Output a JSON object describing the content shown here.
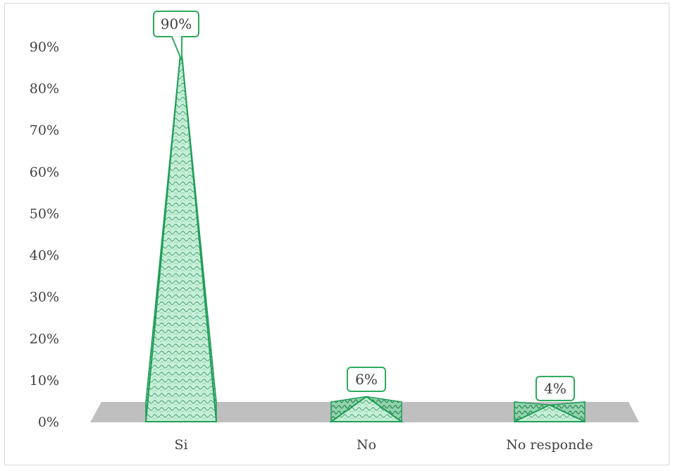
{
  "chart_data": {
    "type": "bar",
    "style": "3d-pyramid",
    "categories": [
      "Si",
      "No",
      "No responde"
    ],
    "values": [
      0.9,
      0.06,
      0.04
    ],
    "data_labels": [
      "90%",
      "6%",
      "4%"
    ],
    "y_ticks": [
      "0%",
      "10%",
      "20%",
      "30%",
      "40%",
      "50%",
      "60%",
      "70%",
      "80%",
      "90%"
    ],
    "ylim": [
      0,
      0.9
    ],
    "grid": false,
    "legend": "none",
    "colors": {
      "fill": "#c6efd8",
      "stroke": "#1e9e57",
      "pattern": "#2f8f5a",
      "floor": "#bfbfbf",
      "label_border": "#2eab5c"
    }
  }
}
